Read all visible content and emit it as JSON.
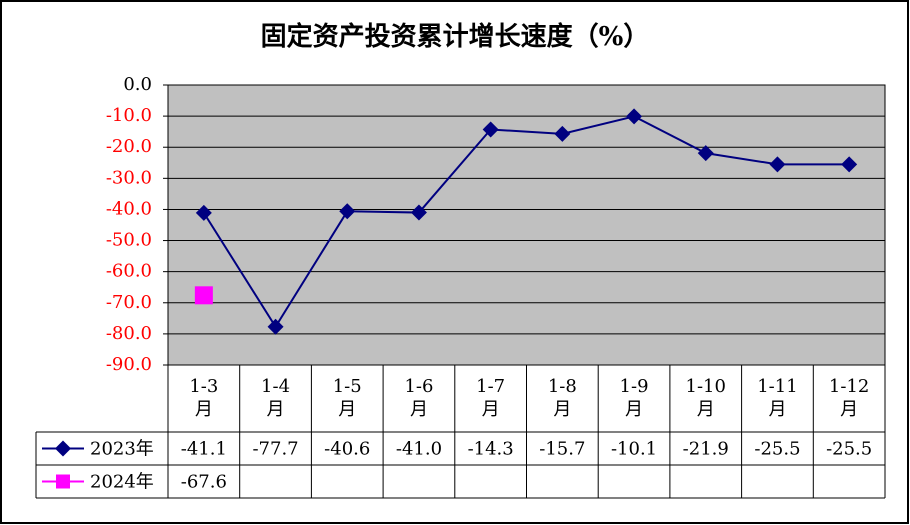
{
  "chart_data": {
    "type": "line",
    "title": "固定资产投资累计增长速度（%）",
    "categories": [
      "1-3月",
      "1-4月",
      "1-5月",
      "1-6月",
      "1-7月",
      "1-8月",
      "1-9月",
      "1-10月",
      "1-11月",
      "1-12月"
    ],
    "series": [
      {
        "name": "2023年",
        "color": "#000080",
        "marker": "diamond",
        "values": [
          -41.1,
          -77.7,
          -40.6,
          -41.0,
          -14.3,
          -15.7,
          -10.1,
          -21.9,
          -25.5,
          -25.5
        ],
        "value_labels": [
          "-41.1",
          "-77.7",
          "-40.6",
          "-41.0",
          "-14.3",
          "-15.7",
          "-10.1",
          "-21.9",
          "-25.5",
          "-25.5"
        ]
      },
      {
        "name": "2024年",
        "color": "#FF00FF",
        "marker": "square",
        "values": [
          -67.6,
          null,
          null,
          null,
          null,
          null,
          null,
          null,
          null,
          null
        ],
        "value_labels": [
          "-67.6",
          null,
          null,
          null,
          null,
          null,
          null,
          null,
          null,
          null
        ]
      }
    ],
    "ylim": [
      -90,
      0
    ],
    "yticks": [
      {
        "value": 0,
        "label": "0.0"
      },
      {
        "value": -10,
        "label": "-10.0"
      },
      {
        "value": -20,
        "label": "-20.0"
      },
      {
        "value": -30,
        "label": "-30.0"
      },
      {
        "value": -40,
        "label": "-40.0"
      },
      {
        "value": -50,
        "label": "-50.0"
      },
      {
        "value": -60,
        "label": "-60.0"
      },
      {
        "value": -70,
        "label": "-70.0"
      },
      {
        "value": -80,
        "label": "-80.0"
      },
      {
        "value": -90,
        "label": "-90.0"
      }
    ],
    "grid": true,
    "plot_background": "#C0C0C0",
    "tick_label_color": "#FF0000"
  }
}
